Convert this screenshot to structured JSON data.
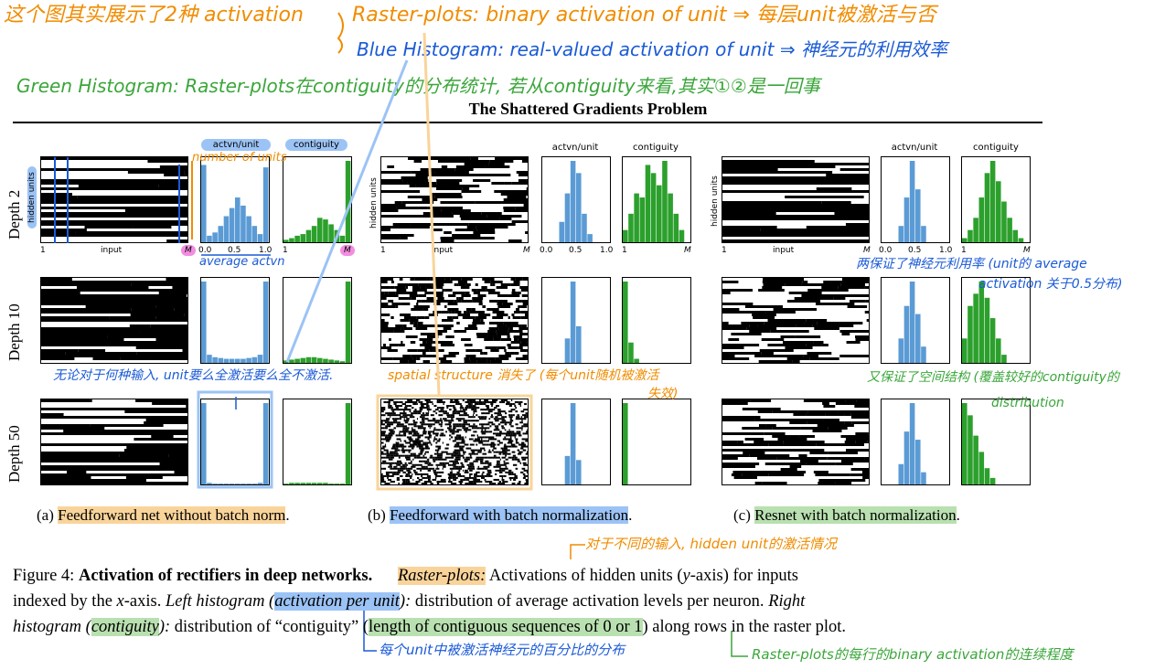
{
  "notes": {
    "top_orange": "这个图其实展示了2种 activation",
    "raster_def": "Raster-plots: binary activation of unit ⇒ 每层unit被激活与否",
    "blue_hist_def": "Blue Histogram: real-valued activation of unit ⇒ 神经元的利用效率",
    "green_hist_def": "Green Histogram: Raster-plots在contiguity的分布统计, 若从contiguity来看,其实①②是一回事",
    "number_of_units": "number of units",
    "average_actvn": "average actvn",
    "no_matter_input": "无论对于何种输入, unit要么全激活要么全不激活.",
    "spatial_structure": "spatial structure 消失了 (每个unit随机被激活",
    "spatial_structure_2": "失效)",
    "resnet_keeps": "两保证了神经元利用率 (unit的 average",
    "resnet_keeps_2": "activation 关于0.5分布)",
    "resnet_spatial": "又保证了空间结构 (覆盖较好的contiguity的",
    "resnet_spatial_2": "distribution",
    "raster_desc": "对于不同的输入, hidden unit的激活情况",
    "per_unit_desc": "每个unit中被激活神经元的百分比的分布",
    "raster_contig_desc": "Raster-plots的每行的binary activation的连续程度"
  },
  "figure": {
    "title": "The Shattered Gradients Problem",
    "hdr_actvn": "actvn/unit",
    "hdr_contig": "contiguity",
    "depth_labels": [
      "Depth 2",
      "Depth 10",
      "Depth 50"
    ],
    "ylabel": "hidden units",
    "xlabel": "input",
    "tick_one": "1",
    "tick_M": "M",
    "hist_ticks": [
      "0.0",
      "0.5",
      "1.0"
    ]
  },
  "subcaptions": {
    "a_prefix": "(a) ",
    "a_text": "Feedforward net without batch norm",
    "a_suffix": ".",
    "b_prefix": "(b) ",
    "b_text": "Feedforward with batch normalization",
    "b_suffix": ".",
    "c_prefix": "(c) ",
    "c_text": "Resnet with batch normalization",
    "c_suffix": "."
  },
  "caption": {
    "fig": "Figure 4: ",
    "bold": "Activation of rectifiers in deep networks.",
    "raster": "Raster-plots:",
    "t1": " Activations of hidden units (",
    "y": "y",
    "t2": "-axis) for inputs",
    "t3": "indexed by the ",
    "x": "x",
    "t4": "-axis. ",
    "left_hist": "Left histogram (",
    "act_per_unit": "activation per unit",
    "t5": "):",
    "t6": " distribution of average activation levels per neuron. ",
    "right": "Right",
    "histogram": "histogram (",
    "contiguity": "contiguity",
    "t7": "):",
    "t8": " distribution of “contiguity” (",
    "length": "length of contiguous sequences of 0 or 1",
    "t9": ") along rows in the raster plot."
  },
  "colors": {
    "orange": "#f08c00",
    "blue": "#1a5ad6",
    "green": "#3aa63a",
    "hist_blue": "#5b9bd5",
    "hist_green": "#2ca02c"
  },
  "chart_data": [
    {
      "type": "bar",
      "panel": "a-depth2-actvn",
      "values": [
        0.95,
        0.08,
        0.12,
        0.2,
        0.32,
        0.42,
        0.55,
        0.45,
        0.32,
        0.2,
        0.1,
        0.92
      ]
    },
    {
      "type": "bar",
      "panel": "a-depth2-contig",
      "values": [
        0.03,
        0.05,
        0.08,
        0.1,
        0.15,
        0.2,
        0.3,
        0.28,
        0.22,
        0.15,
        0.08,
        1.0
      ]
    },
    {
      "type": "bar",
      "panel": "a-depth10-actvn",
      "values": [
        1.0,
        0.1,
        0.07,
        0.06,
        0.05,
        0.05,
        0.05,
        0.05,
        0.06,
        0.07,
        0.1,
        1.0
      ]
    },
    {
      "type": "bar",
      "panel": "a-depth10-contig",
      "values": [
        0.03,
        0.04,
        0.05,
        0.06,
        0.07,
        0.07,
        0.06,
        0.05,
        0.04,
        0.03,
        0.02,
        1.0
      ]
    },
    {
      "type": "bar",
      "panel": "a-depth50-actvn",
      "values": [
        1.0,
        0.02,
        0.01,
        0.01,
        0.01,
        0.01,
        0.01,
        0.01,
        0.01,
        0.01,
        0.02,
        1.0
      ]
    },
    {
      "type": "bar",
      "panel": "a-depth50-contig",
      "values": [
        0.01,
        0.02,
        0.02,
        0.02,
        0.02,
        0.02,
        0.02,
        0.02,
        0.01,
        0.01,
        0.01,
        1.0
      ]
    },
    {
      "type": "bar",
      "panel": "b-depth2-actvn",
      "values": [
        0,
        0,
        0,
        0.25,
        0.6,
        1.0,
        0.85,
        0.35,
        0.1,
        0,
        0,
        0
      ]
    },
    {
      "type": "bar",
      "panel": "b-depth2-contig",
      "values": [
        0.15,
        0.35,
        0.6,
        0.55,
        0.95,
        0.85,
        0.7,
        1.0,
        0.6,
        0.35,
        0.15,
        0
      ]
    },
    {
      "type": "bar",
      "panel": "b-depth10-actvn",
      "values": [
        0,
        0,
        0,
        0,
        0.3,
        1.0,
        0.45,
        0,
        0,
        0,
        0,
        0
      ]
    },
    {
      "type": "bar",
      "panel": "b-depth10-contig",
      "values": [
        1.0,
        0.25,
        0.05,
        0,
        0,
        0,
        0,
        0,
        0,
        0,
        0,
        0
      ]
    },
    {
      "type": "bar",
      "panel": "b-depth50-actvn",
      "values": [
        0,
        0,
        0,
        0,
        0.35,
        1.0,
        0.3,
        0,
        0,
        0,
        0,
        0
      ]
    },
    {
      "type": "bar",
      "panel": "b-depth50-contig",
      "values": [
        1.0,
        0,
        0,
        0,
        0,
        0,
        0,
        0,
        0,
        0,
        0,
        0
      ]
    },
    {
      "type": "bar",
      "panel": "c-depth2-actvn",
      "values": [
        0,
        0,
        0,
        0.2,
        0.55,
        1.0,
        0.65,
        0.2,
        0,
        0,
        0,
        0
      ]
    },
    {
      "type": "bar",
      "panel": "c-depth2-contig",
      "values": [
        0.05,
        0.15,
        0.3,
        0.55,
        0.85,
        1.0,
        0.75,
        0.5,
        0.3,
        0.15,
        0.05,
        0
      ]
    },
    {
      "type": "bar",
      "panel": "c-depth10-actvn",
      "values": [
        0,
        0,
        0,
        0.3,
        0.7,
        1.0,
        0.6,
        0.2,
        0,
        0,
        0,
        0
      ]
    },
    {
      "type": "bar",
      "panel": "c-depth10-contig",
      "values": [
        0.3,
        0.7,
        0.85,
        1.0,
        0.8,
        0.55,
        0.3,
        0.1,
        0,
        0,
        0,
        0
      ]
    },
    {
      "type": "bar",
      "panel": "c-depth50-actvn",
      "values": [
        0,
        0,
        0,
        0.25,
        0.65,
        1.0,
        0.55,
        0.15,
        0,
        0,
        0,
        0
      ]
    },
    {
      "type": "bar",
      "panel": "c-depth50-contig",
      "values": [
        1.0,
        0.85,
        0.6,
        0.4,
        0.2,
        0.08,
        0,
        0,
        0,
        0,
        0,
        0
      ]
    }
  ]
}
